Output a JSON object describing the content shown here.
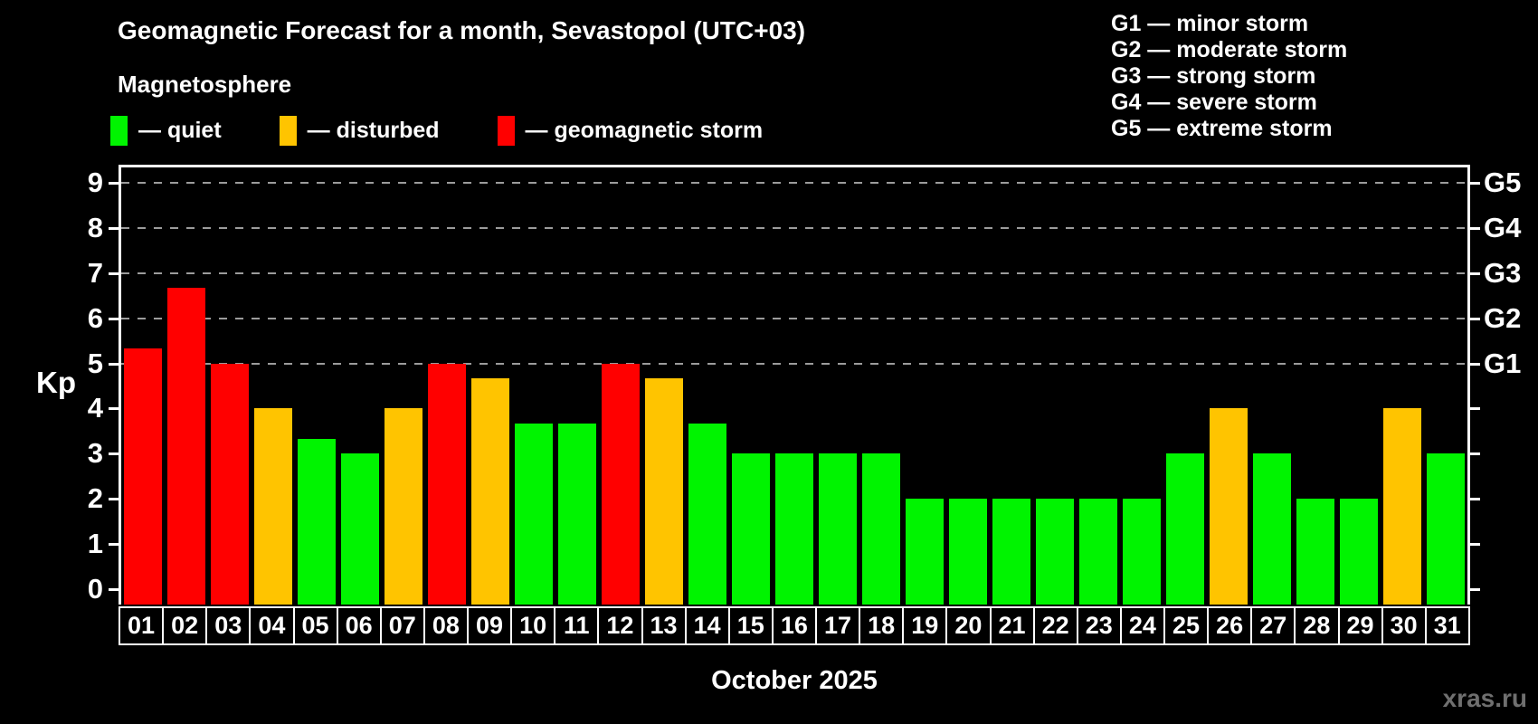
{
  "title": "Geomagnetic Forecast for a month, Sevastopol (UTC+03)",
  "subtitle": "Magnetosphere",
  "legend": [
    {
      "label": "— quiet",
      "status": "quiet"
    },
    {
      "label": "— disturbed",
      "status": "disturbed"
    },
    {
      "label": "— geomagnetic storm",
      "status": "storm"
    }
  ],
  "g_legend": [
    "G1 — minor storm",
    "G2 — moderate storm",
    "G3 — strong storm",
    "G4 — severe storm",
    "G5 — extreme storm"
  ],
  "colors": {
    "quiet": "#00f400",
    "disturbed": "#ffc400",
    "storm": "#ff0000",
    "grid": "#9c9c9c",
    "axis": "#ffffff",
    "watermark": "#6f6f6f",
    "background": "#000000"
  },
  "chart_data": {
    "type": "bar",
    "title": "Geomagnetic Forecast for a month, Sevastopol (UTC+03)",
    "xlabel": "October 2025",
    "ylabel": "Kp",
    "ylim": [
      -0.35,
      9.35
    ],
    "grid": "dashed horizontal at Kp 5-9 only",
    "legend_position": "top-left",
    "y_ticks_left": [
      0,
      1,
      2,
      3,
      4,
      5,
      6,
      7,
      8,
      9
    ],
    "y_ticks_right": [
      0,
      1,
      2,
      3,
      4,
      5,
      6,
      7,
      8,
      9
    ],
    "right_axis_labels": [
      {
        "kp": 5,
        "label": "G1"
      },
      {
        "kp": 6,
        "label": "G2"
      },
      {
        "kp": 7,
        "label": "G3"
      },
      {
        "kp": 8,
        "label": "G4"
      },
      {
        "kp": 9,
        "label": "G5"
      }
    ],
    "grid_kp": [
      5,
      6,
      7,
      8,
      9
    ],
    "categories": [
      "01",
      "02",
      "03",
      "04",
      "05",
      "06",
      "07",
      "08",
      "09",
      "10",
      "11",
      "12",
      "13",
      "14",
      "15",
      "16",
      "17",
      "18",
      "19",
      "20",
      "21",
      "22",
      "23",
      "24",
      "25",
      "26",
      "27",
      "28",
      "29",
      "30",
      "31"
    ],
    "values": [
      5.33,
      6.67,
      5,
      4,
      3.33,
      3,
      4,
      5,
      4.67,
      3.67,
      3.67,
      5,
      4.67,
      3.67,
      3,
      3,
      3,
      3,
      2,
      2,
      2,
      2,
      2,
      2,
      3,
      4,
      3,
      2,
      2,
      4,
      3
    ],
    "statuses": [
      "storm",
      "storm",
      "storm",
      "disturbed",
      "quiet",
      "quiet",
      "disturbed",
      "storm",
      "disturbed",
      "quiet",
      "quiet",
      "storm",
      "disturbed",
      "quiet",
      "quiet",
      "quiet",
      "quiet",
      "quiet",
      "quiet",
      "quiet",
      "quiet",
      "quiet",
      "quiet",
      "quiet",
      "quiet",
      "disturbed",
      "quiet",
      "quiet",
      "quiet",
      "disturbed",
      "quiet"
    ]
  },
  "watermark": "xras.ru"
}
